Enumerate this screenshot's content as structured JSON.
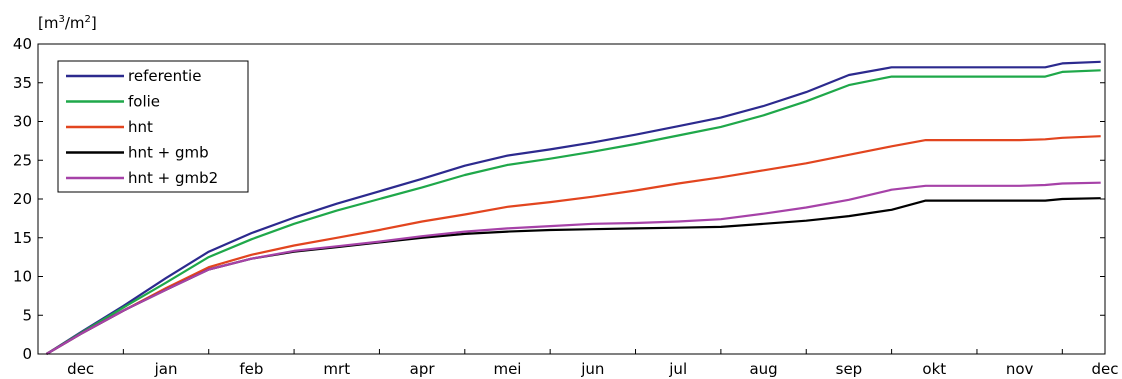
{
  "chart_data": {
    "type": "line",
    "title": "",
    "xlabel": "",
    "ylabel": "[m³/m²]",
    "ylabel_main": "[m",
    "ylabel_sup1": "3",
    "ylabel_mid": "/m",
    "ylabel_sup2": "2",
    "ylabel_end": "]",
    "xlim": [
      0,
      12.5
    ],
    "ylim": [
      0,
      40
    ],
    "yticks": [
      0,
      5,
      10,
      15,
      20,
      25,
      30,
      35,
      40
    ],
    "x_tick_labels": [
      "dec",
      "jan",
      "feb",
      "mrt",
      "apr",
      "mei",
      "jun",
      "jul",
      "aug",
      "sep",
      "okt",
      "nov",
      "dec"
    ],
    "grid": false,
    "legend_position": "top-left",
    "series": [
      {
        "name": "referentie",
        "color": "#2c2a8e",
        "x": [
          0.1,
          0.5,
          1,
          1.5,
          2,
          2.5,
          3,
          3.5,
          4,
          4.5,
          5,
          5.5,
          6,
          6.5,
          7,
          7.5,
          8,
          8.5,
          9,
          9.5,
          10,
          10.4,
          10.75,
          11,
          11.5,
          11.8,
          12,
          12.45
        ],
        "y": [
          0,
          2.8,
          6.2,
          9.8,
          13.2,
          15.6,
          17.6,
          19.4,
          21.0,
          22.6,
          24.3,
          25.6,
          26.4,
          27.3,
          28.3,
          29.4,
          30.5,
          32.0,
          33.8,
          36.0,
          37.0,
          37.0,
          37.0,
          37.0,
          37.0,
          37.0,
          37.5,
          37.7
        ]
      },
      {
        "name": "folie",
        "color": "#1fa84a",
        "x": [
          0.1,
          0.5,
          1,
          1.5,
          2,
          2.5,
          3,
          3.5,
          4,
          4.5,
          5,
          5.5,
          6,
          6.5,
          7,
          7.5,
          8,
          8.5,
          9,
          9.5,
          10,
          10.4,
          10.75,
          11,
          11.5,
          11.8,
          12,
          12.45
        ],
        "y": [
          0,
          2.7,
          6.0,
          9.2,
          12.5,
          14.8,
          16.8,
          18.5,
          20.0,
          21.5,
          23.1,
          24.4,
          25.2,
          26.1,
          27.1,
          28.2,
          29.3,
          30.8,
          32.6,
          34.7,
          35.8,
          35.8,
          35.8,
          35.8,
          35.8,
          35.8,
          36.4,
          36.6
        ]
      },
      {
        "name": "hnt",
        "color": "#e2451f",
        "x": [
          0.1,
          0.5,
          1,
          1.5,
          2,
          2.5,
          3,
          3.5,
          4,
          4.5,
          5,
          5.5,
          6,
          6.5,
          7,
          7.5,
          8,
          8.5,
          9,
          9.5,
          10,
          10.4,
          10.75,
          11,
          11.5,
          11.8,
          12,
          12.45
        ],
        "y": [
          0,
          2.6,
          5.6,
          8.5,
          11.2,
          12.8,
          14.0,
          15.0,
          16.0,
          17.1,
          18.0,
          19.0,
          19.6,
          20.3,
          21.1,
          22.0,
          22.8,
          23.7,
          24.6,
          25.7,
          26.8,
          27.6,
          27.6,
          27.6,
          27.6,
          27.7,
          27.9,
          28.1
        ]
      },
      {
        "name": "hnt + gmb",
        "color": "#000000",
        "x": [
          0.1,
          0.5,
          1,
          1.5,
          2,
          2.5,
          3,
          3.5,
          4,
          4.5,
          5,
          5.5,
          6,
          6.5,
          7,
          7.5,
          8,
          8.5,
          9,
          9.5,
          10,
          10.4,
          10.75,
          11,
          11.5,
          11.8,
          12,
          12.45
        ],
        "y": [
          0,
          2.6,
          5.6,
          8.3,
          10.9,
          12.3,
          13.2,
          13.8,
          14.4,
          15.0,
          15.5,
          15.8,
          16.0,
          16.1,
          16.2,
          16.3,
          16.4,
          16.8,
          17.2,
          17.8,
          18.6,
          19.8,
          19.8,
          19.8,
          19.8,
          19.8,
          20.0,
          20.1
        ]
      },
      {
        "name": "hnt + gmb2",
        "color": "#a642a8",
        "x": [
          0.1,
          0.5,
          1,
          1.5,
          2,
          2.5,
          3,
          3.5,
          4,
          4.5,
          5,
          5.5,
          6,
          6.5,
          7,
          7.5,
          8,
          8.5,
          9,
          9.5,
          10,
          10.4,
          10.75,
          11,
          11.5,
          11.8,
          12,
          12.45
        ],
        "y": [
          0,
          2.6,
          5.6,
          8.3,
          10.9,
          12.3,
          13.3,
          13.9,
          14.5,
          15.2,
          15.8,
          16.2,
          16.5,
          16.8,
          16.9,
          17.1,
          17.4,
          18.1,
          18.9,
          19.9,
          21.2,
          21.7,
          21.7,
          21.7,
          21.7,
          21.8,
          22.0,
          22.1
        ]
      }
    ]
  }
}
